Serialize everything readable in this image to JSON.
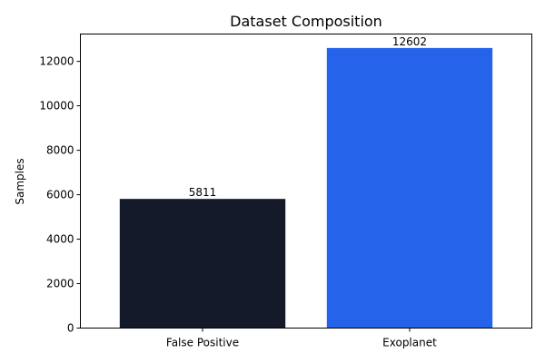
{
  "chart_data": {
    "type": "bar",
    "title": "Dataset Composition",
    "xlabel": "",
    "ylabel": "Samples",
    "categories": [
      "False Positive",
      "Exoplanet"
    ],
    "values": [
      5811,
      12602
    ],
    "data_labels": [
      "5811",
      "12602"
    ],
    "colors": [
      "#141a29",
      "#2563eb"
    ],
    "ylim": [
      0,
      13230
    ],
    "yticks": [
      0,
      2000,
      4000,
      6000,
      8000,
      10000,
      12000
    ],
    "ytick_labels": [
      "0",
      "2000",
      "4000",
      "6000",
      "8000",
      "10000",
      "12000"
    ],
    "grid": false,
    "legend": "none"
  }
}
